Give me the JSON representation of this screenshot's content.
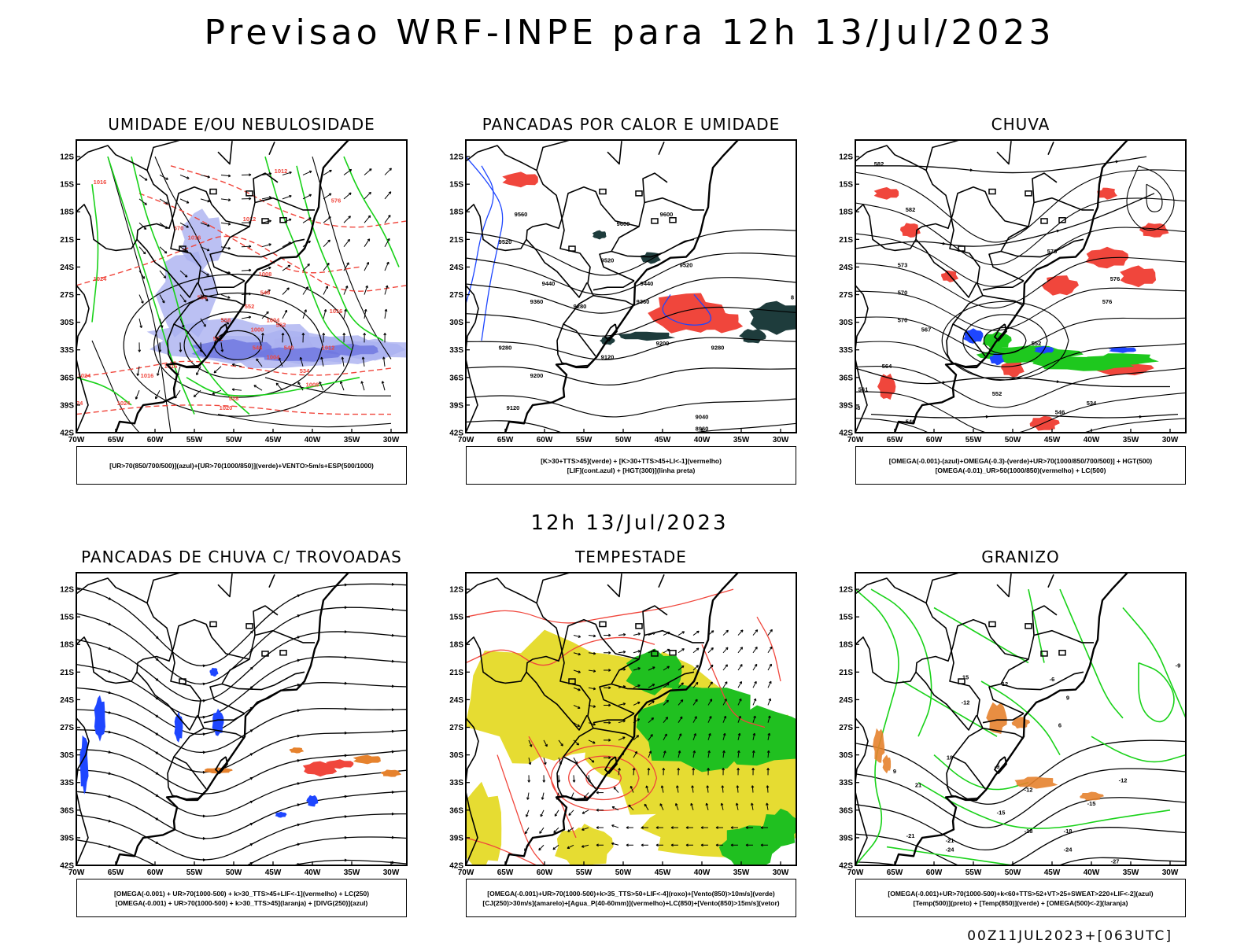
{
  "header": {
    "title": "Previsao WRF-INPE  para 12h 13/Jul/2023"
  },
  "mid_title": "12h 13/Jul/2023",
  "footer": "00Z11JUL2023+[063UTC]",
  "axes": {
    "lat_labels": [
      "12S",
      "15S",
      "18S",
      "21S",
      "24S",
      "27S",
      "30S",
      "33S",
      "36S",
      "39S",
      "42S"
    ],
    "lon_labels": [
      "70W",
      "65W",
      "60W",
      "55W",
      "50W",
      "45W",
      "40W",
      "35W",
      "30W"
    ]
  },
  "panels": [
    {
      "id": "umidade",
      "title": "UMIDADE E/OU NEBULOSIDADE",
      "legend": [
        "[UR>70(850/700/500)](azul)+[UR>70(1000/850)](verde)+VENTO>5m/s+ESP(500/1000)"
      ],
      "labels": [
        "1012",
        "1016",
        "1016",
        "1016",
        "1012",
        "1008",
        "1004",
        "1000",
        "1004",
        "1008",
        "1012",
        "1016",
        "1020",
        "1024",
        "1024",
        "1024",
        "1024",
        "1016",
        "576",
        "570",
        "564",
        "558",
        "552",
        "546",
        "540",
        "534",
        "528",
        "552",
        "552",
        "546"
      ]
    },
    {
      "id": "pancadas-calor",
      "title": "PANCADAS POR CALOR E UMIDADE",
      "legend": [
        "[K>30+TTS>45](verde) + [K>30+TTS>45+LI<-1](vermelho)",
        "[LIF](cont.azul) + [HGT(300)](linha preta)"
      ],
      "labels": [
        "9600",
        "9600",
        "9560",
        "9520",
        "9520",
        "9520",
        "9440",
        "9440",
        "9360",
        "9360",
        "9280",
        "9280",
        "9280",
        "9200",
        "9200",
        "9120",
        "9120",
        "9040",
        "8960",
        "8"
      ]
    },
    {
      "id": "chuva",
      "title": "CHUVA",
      "legend": [
        "[OMEGA(-0.001)-(azul)+OMEGA(-0.3)-(verde)+UR>70(1000/850/700/500)] + HGT(500)",
        "[OMEGA(-0.01)_UR>50(1000/850)(vermelho) + LC(500)"
      ],
      "labels": [
        "582",
        "582",
        "576",
        "576",
        "576",
        "573",
        "570",
        "570",
        "567",
        "564",
        "561",
        "558",
        "552",
        "546",
        "540",
        "534",
        "552"
      ]
    },
    {
      "id": "trovoadas",
      "title": "PANCADAS DE CHUVA C/ TROVOADAS",
      "legend": [
        "[OMEGA(-0.001) + UR>70(1000-500) + k>30_TTS>45+LIF<-1](vermelho) + LC(250)",
        "[OMEGA(-0.001) + UR>70(1000-500) + k>30_TTS>45](laranja) + [DIVG(250)](azul)"
      ],
      "labels": []
    },
    {
      "id": "tempestade",
      "title": "TEMPESTADE",
      "legend": [
        "[OMEGA(-0.001)+UR>70(1000-500)+k>35_TTS>50+LIF<-4](roxo)+[Vento(850)>10m/s](verde)",
        "[CJ(250)>30m/s](amarelo)+[Agua_P(40-60mm)](vermelho)+LC(850)+[Vento(850)>15m/s](vetor)"
      ],
      "labels": []
    },
    {
      "id": "granizo",
      "title": "GRANIZO",
      "legend": [
        "[OMEGA(-0.001)+UR>70(1000-500)+k<60+TTS>52+VT>25+SWEAT>220+LIF<-2](azul)",
        "[Temp(500)](preto) + [Temp(850)](verde) + [OMEGA(500)<-2](laranja)"
      ],
      "labels": [
        "-9",
        "-12",
        "-12",
        "-15",
        "-15",
        "-18",
        "-18",
        "-21",
        "-21",
        "-24",
        "-24",
        "-27",
        "-12",
        "-9",
        "-6",
        "18",
        "15",
        "12",
        "9",
        "9",
        "6",
        "21"
      ]
    }
  ],
  "colors": {
    "blue_shade": "#aab0f0",
    "green_contour": "#19d219",
    "red_dash": "#f0463c",
    "red_fill": "#f0463c",
    "dark_teal": "#1e3c3c",
    "green_fill": "#1ec81e",
    "yellow_fill": "#e6dc32",
    "orange": "#e6822d",
    "blue": "#1e46ff"
  }
}
